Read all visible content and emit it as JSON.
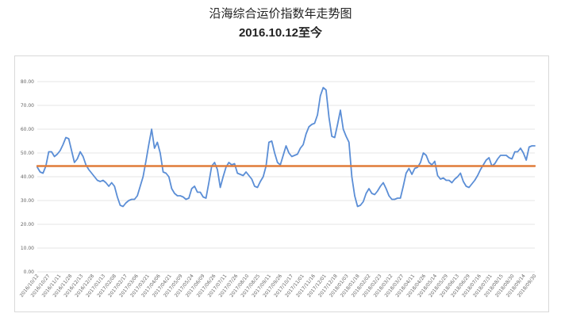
{
  "chart_data": {
    "type": "line",
    "title": "沿海综合运价指数年走势图",
    "subtitle": "2016.10.12至今",
    "ylim": [
      0,
      85
    ],
    "yticks": [
      "0.00",
      "10.00",
      "20.00",
      "30.00",
      "40.00",
      "50.00",
      "60.00",
      "70.00",
      "80.00"
    ],
    "grid": true,
    "x_tick_labels": [
      "2016/10/12",
      "2016/10/27",
      "2016/11/11",
      "2016/11/28",
      "2016/12/13",
      "2016/12/28",
      "2017/01/13",
      "2017/02/08",
      "2017/02/17",
      "2017/03/06",
      "2017/03/21",
      "2017/04/06",
      "2017/04/21",
      "2017/05/09",
      "2017/05/24",
      "2017/06/09",
      "2017/06/26",
      "2017/07/11",
      "2017/07/26",
      "2017/08/10",
      "2017/08/25",
      "2017/09/11",
      "2017/09/26",
      "2017/10/17",
      "2017/11/01",
      "2017/11/16",
      "2017/12/01",
      "2017/12/18",
      "2018/01/03",
      "2018/01/18",
      "2018/02/02",
      "2018/02/23",
      "2018/03/12",
      "2018/03/27",
      "2018/04/11",
      "2018/04/26",
      "2018/05/14",
      "2018/05/29",
      "2018/06/13",
      "2018/06/29",
      "2018/07/16",
      "2018/07/31",
      "2018/08/15",
      "2018/08/30",
      "2018/09/14",
      "2018/09/30"
    ],
    "series": [
      {
        "color": "#5b8ed6",
        "values": [
          44.0,
          42.0,
          41.5,
          44.5,
          50.5,
          50.5,
          48.5,
          49.5,
          51.0,
          53.5,
          56.5,
          56.0,
          51.0,
          46.0,
          47.5,
          50.5,
          48.5,
          45.0,
          43.0,
          41.5,
          40.0,
          38.5,
          38.0,
          38.5,
          37.5,
          36.0,
          37.5,
          36.0,
          31.5,
          28.0,
          27.5,
          29.0,
          30.0,
          30.5,
          30.5,
          32.0,
          36.0,
          40.0,
          46.5,
          53.5,
          60.0,
          52.0,
          54.5,
          50.0,
          42.0,
          41.5,
          40.0,
          35.0,
          33.0,
          32.0,
          32.0,
          31.5,
          30.5,
          31.0,
          35.0,
          36.0,
          33.5,
          33.5,
          31.5,
          31.0,
          37.5,
          44.5,
          46.0,
          43.0,
          35.5,
          40.0,
          44.0,
          46.0,
          45.0,
          45.5,
          41.5,
          41.0,
          40.5,
          42.0,
          40.5,
          39.0,
          36.0,
          35.5,
          38.0,
          40.0,
          44.5,
          54.5,
          55.0,
          50.0,
          46.0,
          45.0,
          49.0,
          53.0,
          50.0,
          48.5,
          49.0,
          49.5,
          52.0,
          53.5,
          58.0,
          61.0,
          62.0,
          62.5,
          66.0,
          74.0,
          77.5,
          76.5,
          65.0,
          57.0,
          56.5,
          62.0,
          68.0,
          60.0,
          57.0,
          54.5,
          40.0,
          32.0,
          27.5,
          28.0,
          29.5,
          33.0,
          35.0,
          33.0,
          32.5,
          34.0,
          36.0,
          37.5,
          35.0,
          32.0,
          30.5,
          30.5,
          31.0,
          31.0,
          36.0,
          41.5,
          43.5,
          41.0,
          43.5,
          44.0,
          46.0,
          50.0,
          49.0,
          46.0,
          45.0,
          46.5,
          40.5,
          39.0,
          39.5,
          38.5,
          38.5,
          37.5,
          39.0,
          40.0,
          41.5,
          38.0,
          36.0,
          35.5,
          37.0,
          38.5,
          40.5,
          43.0,
          45.0,
          47.0,
          48.0,
          44.5,
          45.5,
          47.5,
          49.0,
          49.0,
          49.0,
          48.0,
          47.5,
          50.5,
          50.5,
          52.0,
          50.0,
          47.0,
          52.5,
          53.0,
          53.0
        ]
      },
      {
        "color": "#e07b39",
        "values": [
          44.5,
          44.5
        ]
      }
    ]
  }
}
